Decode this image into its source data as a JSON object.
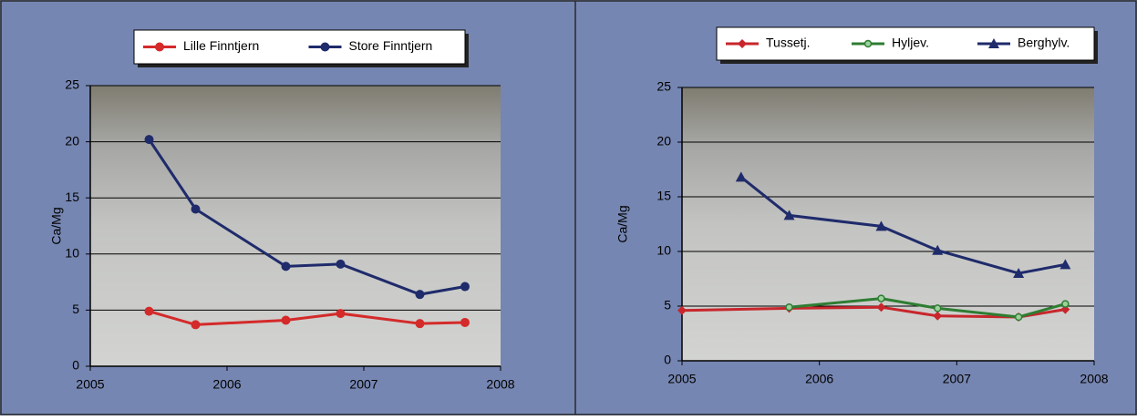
{
  "chart_data": [
    {
      "type": "line",
      "y_label": "Ca/Mg",
      "xlim": [
        2005,
        2008
      ],
      "xticks": [
        2005,
        2006,
        2007,
        2008
      ],
      "ylim": [
        0,
        25
      ],
      "yticks": [
        0,
        5,
        10,
        15,
        20,
        25
      ],
      "grid": true,
      "legend": "top",
      "series": [
        {
          "name": "Lille Finntjern",
          "color": "#d42a2a",
          "marker": "circle",
          "x": [
            2005.43,
            2005.77,
            2006.43,
            2006.83,
            2007.41,
            2007.74
          ],
          "values": [
            4.9,
            3.7,
            4.1,
            4.7,
            3.8,
            3.9
          ]
        },
        {
          "name": "Store Finntjern",
          "color": "#1f2b6b",
          "marker": "circle",
          "x": [
            2005.43,
            2005.77,
            2006.43,
            2006.83,
            2007.41,
            2007.74
          ],
          "values": [
            20.2,
            14.0,
            8.9,
            9.1,
            6.4,
            7.1
          ]
        }
      ]
    },
    {
      "type": "line",
      "y_label": "Ca/Mg",
      "xlim": [
        2005,
        2008
      ],
      "xticks": [
        2005,
        2006,
        2007,
        2008
      ],
      "ylim": [
        0,
        25
      ],
      "yticks": [
        0,
        5,
        10,
        15,
        20,
        25
      ],
      "grid": true,
      "legend": "top",
      "series": [
        {
          "name": "Tussetj.",
          "color": "#c8262c",
          "marker": "diamond",
          "x": [
            2005.0,
            2005.78,
            2006.45,
            2006.86,
            2007.45,
            2007.79
          ],
          "values": [
            4.6,
            4.8,
            4.9,
            4.1,
            4.0,
            4.7
          ]
        },
        {
          "name": "Hyljev.",
          "color": "#2e7d32",
          "marker": "small-circle",
          "x": [
            2005.78,
            2006.45,
            2006.86,
            2007.45,
            2007.79
          ],
          "values": [
            4.9,
            5.7,
            4.8,
            4.0,
            5.2
          ]
        },
        {
          "name": "Berghylv.",
          "color": "#1f2b6b",
          "marker": "triangle",
          "x": [
            2005.43,
            2005.78,
            2006.45,
            2006.86,
            2007.45,
            2007.79
          ],
          "values": [
            16.8,
            13.3,
            12.3,
            10.1,
            8.0,
            8.8
          ]
        }
      ]
    }
  ]
}
